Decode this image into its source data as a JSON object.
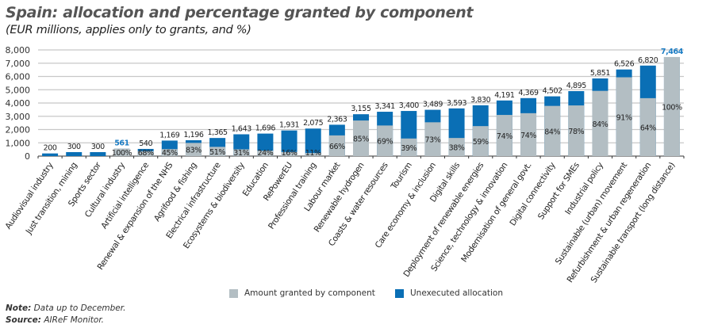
{
  "title": "Spain: allocation and percentage granted by component",
  "subtitle": "(EUR millions, applies only to grants, and %)",
  "legend": {
    "granted": "Amount granted by component",
    "unexecuted": "Unexecuted allocation"
  },
  "note": {
    "label": "Note:",
    "text": " Data up to December."
  },
  "source": {
    "label": "Source:",
    "text": " AIReF Monitor."
  },
  "colors": {
    "granted": "#b3bec3",
    "unexecuted": "#0a6fb5",
    "highlight": "#1a7cc4"
  },
  "chart_data": {
    "type": "bar",
    "stacked": true,
    "ylim": [
      0,
      8000
    ],
    "yticks": [
      "0",
      "1,000",
      "2,000",
      "3,000",
      "4,000",
      "5,000",
      "6,000",
      "7,000",
      "8,000"
    ],
    "categories": [
      "Audiovisual industry",
      "Just transition, mining",
      "Sports sector",
      "Cultural industry",
      "Artificial intelligence",
      "Renewal & expansion of the NHS",
      "Agrifood & fishing",
      "Electrical infrastructure",
      "Ecosystems & biodiversity",
      "Education",
      "RePowerEU",
      "Professional training",
      "Labour market",
      "Renewable hydrogen",
      "Coasts & water resources",
      "Tourism",
      "Care economy & inclusion",
      "Digital skills",
      "Deployment of renewable energies",
      "Science, technology & innovation",
      "Modernisation of general govt.",
      "Digital connectivity",
      "Support for SMEs",
      "Industrial policy",
      "Sustainable (urban) movement",
      "Refurbishment & urban regeneration",
      "Sustainable transport (long distance)"
    ],
    "totals": [
      200,
      300,
      300,
      561,
      540,
      1169,
      1196,
      1365,
      1643,
      1696,
      1931,
      2075,
      2363,
      3155,
      3341,
      3400,
      3489,
      3593,
      3830,
      4191,
      4369,
      4502,
      4895,
      5851,
      6526,
      6820,
      7464
    ],
    "total_labels": [
      "200",
      "300",
      "300",
      "561",
      "540",
      "1,169",
      "1,196",
      "1,365",
      "1,643",
      "1,696",
      "1,931",
      "2,075",
      "2,363",
      "3,155",
      "3,341",
      "3,400",
      "3,489",
      "3,593",
      "3,830",
      "4,191",
      "4,369",
      "4,502",
      "4,895",
      "5,851",
      "6,526",
      "6,820",
      "7,464"
    ],
    "granted_pct": [
      null,
      null,
      null,
      100,
      68,
      45,
      83,
      51,
      31,
      24,
      16,
      11,
      66,
      85,
      69,
      39,
      73,
      38,
      59,
      74,
      74,
      84,
      78,
      84,
      91,
      64,
      100
    ],
    "highlighted": [
      3,
      26
    ],
    "series": [
      {
        "name": "Amount granted by component"
      },
      {
        "name": "Unexecuted allocation"
      }
    ]
  }
}
